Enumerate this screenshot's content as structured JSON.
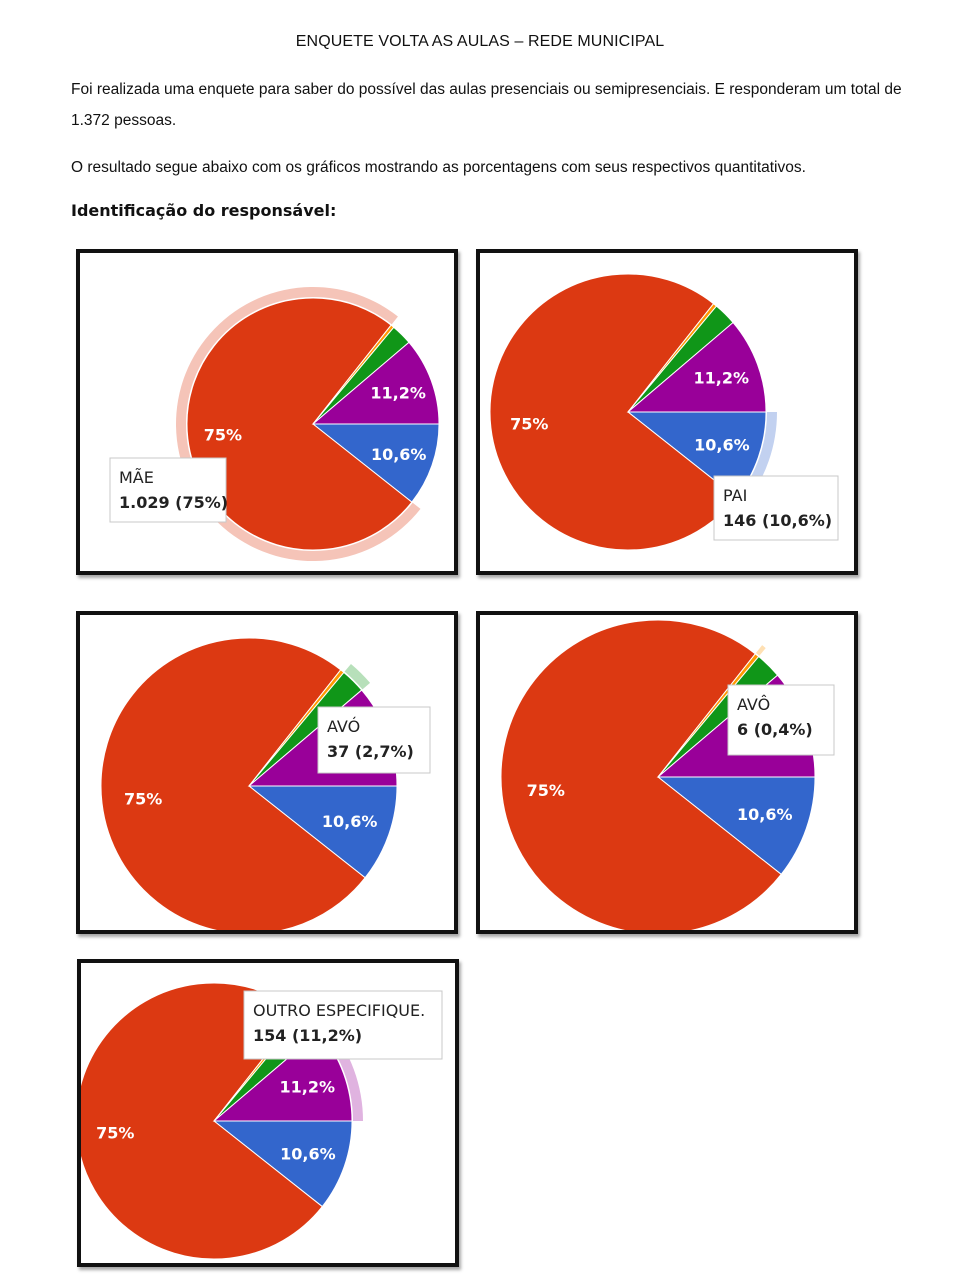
{
  "document": {
    "title": "ENQUETE VOLTA AS AULAS – REDE MUNICIPAL",
    "paragraph1": "Foi realizada uma enquete para saber do possível das aulas presenciais ou semipresenciais. E responderam um total de 1.372 pessoas.",
    "paragraph2": "O resultado segue abaixo com os gráficos mostrando as porcentagens com seus respectivos quantitativos.",
    "section_heading": "Identificação do responsável:"
  },
  "chart_data": [
    {
      "type": "pie",
      "categories": [
        "MÃE",
        "PAI",
        "OUTRO ESPECIFIQUE.",
        "AVÓ",
        "AVÔ"
      ],
      "values": [
        1029,
        146,
        154,
        37,
        6
      ],
      "slice_labels": [
        "75%",
        "10,6%",
        "11,2%",
        "",
        ""
      ],
      "colors": [
        "#dc3912",
        "#3366cc",
        "#990099",
        "#109618",
        "#ff9900"
      ],
      "highlighted": 0,
      "tooltip": {
        "name": "MÃE",
        "value": "1.029 (75%)"
      }
    },
    {
      "type": "pie",
      "categories": [
        "MÃE",
        "PAI",
        "OUTRO ESPECIFIQUE.",
        "AVÓ",
        "AVÔ"
      ],
      "values": [
        1029,
        146,
        154,
        37,
        6
      ],
      "slice_labels": [
        "75%",
        "10,6%",
        "11,2%",
        "",
        ""
      ],
      "colors": [
        "#dc3912",
        "#3366cc",
        "#990099",
        "#109618",
        "#ff9900"
      ],
      "highlighted": 1,
      "tooltip": {
        "name": "PAI",
        "value": "146 (10,6%)"
      }
    },
    {
      "type": "pie",
      "categories": [
        "MÃE",
        "PAI",
        "OUTRO ESPECIFIQUE.",
        "AVÓ",
        "AVÔ"
      ],
      "values": [
        1029,
        146,
        154,
        37,
        6
      ],
      "slice_labels": [
        "75%",
        "10,6%",
        "",
        "",
        ""
      ],
      "colors": [
        "#dc3912",
        "#3366cc",
        "#990099",
        "#109618",
        "#ff9900"
      ],
      "highlighted": 3,
      "tooltip": {
        "name": "AVÓ",
        "value": "37 (2,7%)"
      }
    },
    {
      "type": "pie",
      "categories": [
        "MÃE",
        "PAI",
        "OUTRO ESPECIFIQUE.",
        "AVÓ",
        "AVÔ"
      ],
      "values": [
        1029,
        146,
        154,
        37,
        6
      ],
      "slice_labels": [
        "75%",
        "10,6%",
        "",
        "",
        ""
      ],
      "colors": [
        "#dc3912",
        "#3366cc",
        "#990099",
        "#109618",
        "#ff9900"
      ],
      "highlighted": 4,
      "tooltip": {
        "name": "AVÔ",
        "value": "6 (0,4%)"
      }
    },
    {
      "type": "pie",
      "categories": [
        "MÃE",
        "PAI",
        "OUTRO ESPECIFIQUE.",
        "AVÓ",
        "AVÔ"
      ],
      "values": [
        1029,
        146,
        154,
        37,
        6
      ],
      "slice_labels": [
        "75%",
        "10,6%",
        "11,2%",
        "",
        ""
      ],
      "colors": [
        "#dc3912",
        "#3366cc",
        "#990099",
        "#109618",
        "#ff9900"
      ],
      "highlighted": 2,
      "tooltip": {
        "name": "OUTRO ESPECIFIQUE.",
        "value": "154 (11,2%)"
      }
    }
  ]
}
